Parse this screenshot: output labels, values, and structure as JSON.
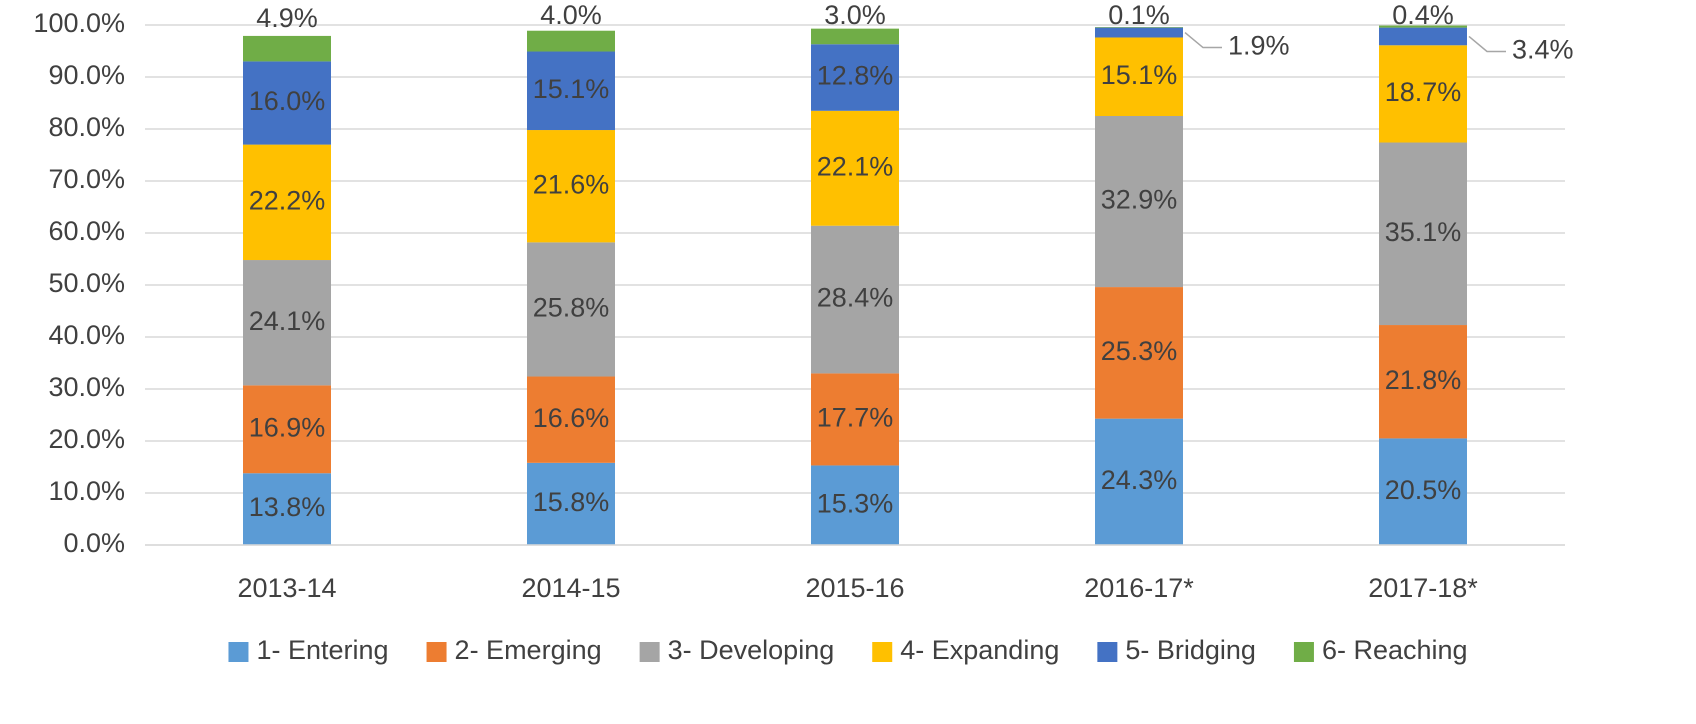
{
  "chart_data": {
    "type": "stacked_bar",
    "categories": [
      "2013-14",
      "2014-15",
      "2015-16",
      "2016-17*",
      "2017-18*"
    ],
    "series": [
      {
        "name": "1- Entering",
        "color": "#5b9bd5",
        "values": [
          13.8,
          15.8,
          15.3,
          24.3,
          20.5
        ],
        "value_labels": [
          "13.8%",
          "15.8%",
          "15.3%",
          "24.3%",
          "20.5%"
        ]
      },
      {
        "name": "2- Emerging",
        "color": "#ed7d31",
        "values": [
          16.9,
          16.6,
          17.7,
          25.3,
          21.8
        ],
        "value_labels": [
          "16.9%",
          "16.6%",
          "17.7%",
          "25.3%",
          "21.8%"
        ]
      },
      {
        "name": "3- Developing",
        "color": "#a5a5a5",
        "values": [
          24.1,
          25.8,
          28.4,
          32.9,
          35.1
        ],
        "value_labels": [
          "24.1%",
          "25.8%",
          "28.4%",
          "32.9%",
          "35.1%"
        ]
      },
      {
        "name": "4- Expanding",
        "color": "#ffc000",
        "values": [
          22.2,
          21.6,
          22.1,
          15.1,
          18.7
        ],
        "value_labels": [
          "22.2%",
          "21.6%",
          "22.1%",
          "15.1%",
          "18.7%"
        ]
      },
      {
        "name": "5- Bridging",
        "color": "#4472c4",
        "values": [
          16.0,
          15.1,
          12.8,
          1.9,
          3.4
        ],
        "value_labels": [
          "16.0%",
          "15.1%",
          "12.8%",
          "1.9%",
          "3.4%"
        ]
      },
      {
        "name": "6- Reaching",
        "color": "#70ad47",
        "values": [
          4.9,
          4.0,
          3.0,
          0.1,
          0.4
        ],
        "value_labels": [
          "4.9%",
          "4.0%",
          "3.0%",
          "0.1%",
          "0.4%"
        ]
      }
    ],
    "ylim": [
      0,
      100
    ],
    "yticks": [
      {
        "value": 0,
        "label": "0.0%"
      },
      {
        "value": 10,
        "label": "10.0%"
      },
      {
        "value": 20,
        "label": "20.0%"
      },
      {
        "value": 30,
        "label": "30.0%"
      },
      {
        "value": 40,
        "label": "40.0%"
      },
      {
        "value": 50,
        "label": "50.0%"
      },
      {
        "value": 60,
        "label": "60.0%"
      },
      {
        "value": 70,
        "label": "70.0%"
      },
      {
        "value": 80,
        "label": "80.0%"
      },
      {
        "value": 90,
        "label": "90.0%"
      },
      {
        "value": 100,
        "label": "100.0%"
      }
    ],
    "grid": true,
    "legend": "bottom"
  }
}
